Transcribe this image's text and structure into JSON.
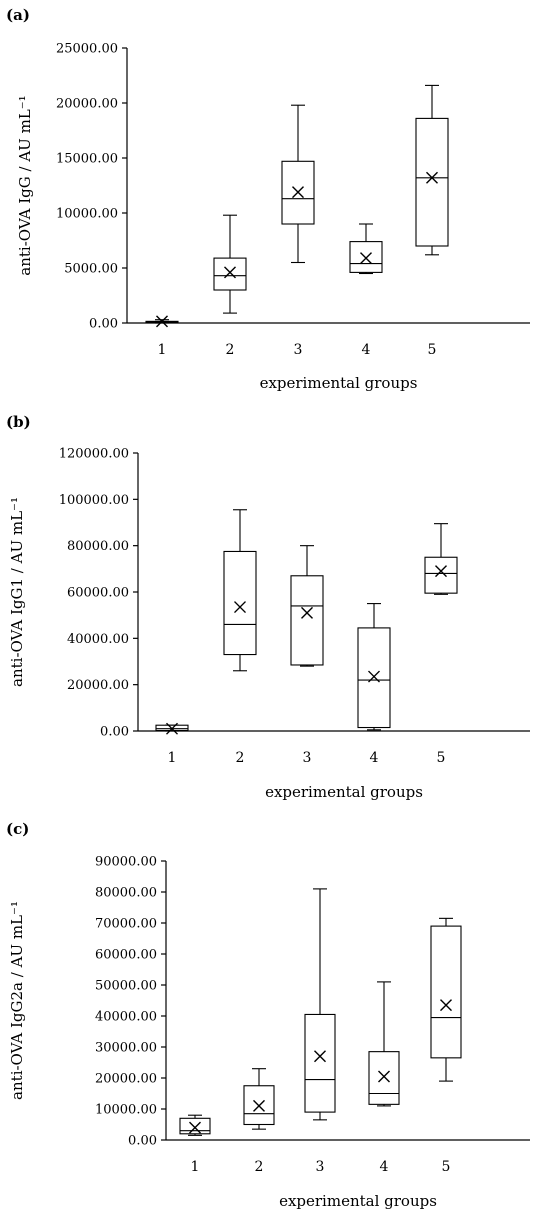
{
  "chart_data": [
    {
      "type": "box",
      "panel_label": "(a)",
      "xlabel": "experimental groups",
      "ylabel": "anti-OVA IgG / AU mL⁻¹",
      "ylim": [
        0,
        25000
      ],
      "yticks": [
        "0.00",
        "5000.00",
        "10000.00",
        "15000.00",
        "20000.00",
        "25000.00"
      ],
      "ytick_values": [
        0,
        5000,
        10000,
        15000,
        20000,
        25000
      ],
      "categories": [
        "1",
        "2",
        "3",
        "4",
        "5"
      ],
      "boxes": [
        {
          "min": 0,
          "q1": 50,
          "median": 100,
          "q3": 150,
          "max": 300,
          "mean": 150
        },
        {
          "min": 900,
          "q1": 3000,
          "median": 4300,
          "q3": 5900,
          "max": 9800,
          "mean": 4600
        },
        {
          "min": 5500,
          "q1": 9000,
          "median": 11300,
          "q3": 14700,
          "max": 19800,
          "mean": 11900
        },
        {
          "min": 4500,
          "q1": 4600,
          "median": 5400,
          "q3": 7400,
          "max": 9000,
          "mean": 5900
        },
        {
          "min": 6200,
          "q1": 7000,
          "median": 13200,
          "q3": 18600,
          "max": 21600,
          "mean": 13200
        }
      ]
    },
    {
      "type": "box",
      "panel_label": "(b)",
      "xlabel": "experimental groups",
      "ylabel": "anti-OVA IgG1 / AU mL⁻¹",
      "ylim": [
        0,
        120000
      ],
      "yticks": [
        "0.00",
        "20000.00",
        "40000.00",
        "60000.00",
        "80000.00",
        "100000.00",
        "120000.00"
      ],
      "ytick_values": [
        0,
        20000,
        40000,
        60000,
        80000,
        100000,
        120000
      ],
      "categories": [
        "1",
        "2",
        "3",
        "4",
        "5"
      ],
      "boxes": [
        {
          "min": 0,
          "q1": 200,
          "median": 1000,
          "q3": 2500,
          "max": 2500,
          "mean": 1000
        },
        {
          "min": 26000,
          "q1": 33000,
          "median": 46000,
          "q3": 77500,
          "max": 95500,
          "mean": 53500
        },
        {
          "min": 28000,
          "q1": 28500,
          "median": 54000,
          "q3": 67000,
          "max": 80000,
          "mean": 51000
        },
        {
          "min": 500,
          "q1": 1500,
          "median": 22000,
          "q3": 44500,
          "max": 55000,
          "mean": 23500
        },
        {
          "min": 59000,
          "q1": 59500,
          "median": 68000,
          "q3": 75000,
          "max": 89500,
          "mean": 69000
        }
      ]
    },
    {
      "type": "box",
      "panel_label": "(c)",
      "xlabel": "experimental groups",
      "ylabel": "anti-OVA IgG2a / AU mL⁻¹",
      "ylim": [
        0,
        90000
      ],
      "yticks": [
        "0.00",
        "10000.00",
        "20000.00",
        "30000.00",
        "40000.00",
        "50000.00",
        "60000.00",
        "70000.00",
        "80000.00",
        "90000.00"
      ],
      "ytick_values": [
        0,
        10000,
        20000,
        30000,
        40000,
        50000,
        60000,
        70000,
        80000,
        90000
      ],
      "categories": [
        "1",
        "2",
        "3",
        "4",
        "5"
      ],
      "boxes": [
        {
          "min": 1500,
          "q1": 2000,
          "median": 3000,
          "q3": 7000,
          "max": 8000,
          "mean": 4000
        },
        {
          "min": 3500,
          "q1": 5000,
          "median": 8500,
          "q3": 17500,
          "max": 23000,
          "mean": 11000
        },
        {
          "min": 6500,
          "q1": 9000,
          "median": 19500,
          "q3": 40500,
          "max": 81000,
          "mean": 27000
        },
        {
          "min": 11000,
          "q1": 11500,
          "median": 15000,
          "q3": 28500,
          "max": 51000,
          "mean": 20500
        },
        {
          "min": 19000,
          "q1": 26500,
          "median": 39500,
          "q3": 69000,
          "max": 71500,
          "mean": 43500
        }
      ]
    }
  ]
}
